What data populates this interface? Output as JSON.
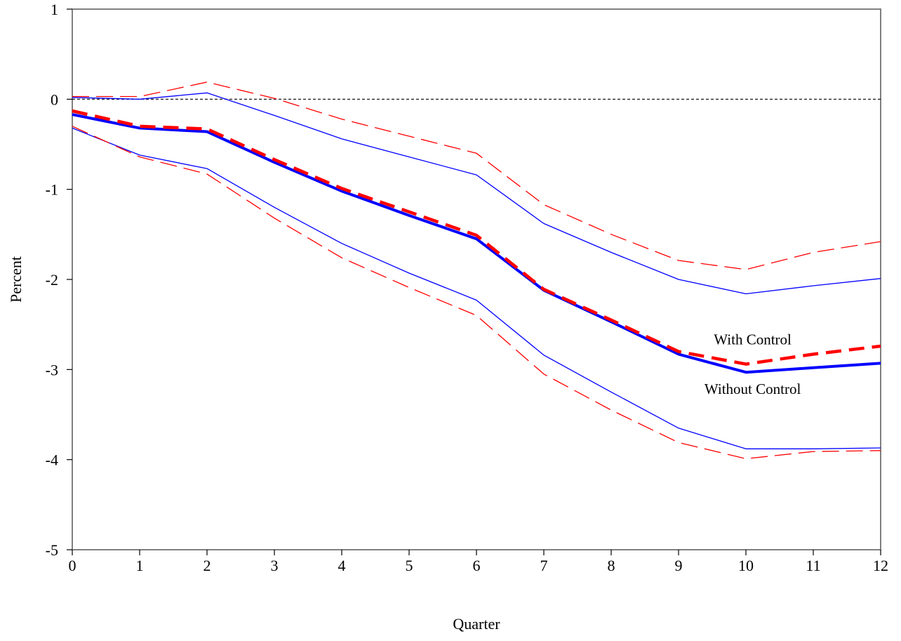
{
  "chart_data": {
    "type": "line",
    "title": "",
    "xlabel": "Quarter",
    "ylabel": "Percent",
    "xlim": [
      0,
      12
    ],
    "ylim": [
      -5,
      1
    ],
    "x": [
      0,
      1,
      2,
      3,
      4,
      5,
      6,
      7,
      8,
      9,
      10,
      11,
      12
    ],
    "xticks": [
      "0",
      "1",
      "2",
      "3",
      "4",
      "5",
      "6",
      "7",
      "8",
      "9",
      "10",
      "11",
      "12"
    ],
    "yticks": [
      "1",
      "0",
      "-1",
      "-2",
      "-3",
      "-4",
      "-5"
    ],
    "grid": false,
    "reference_line": {
      "y": 0,
      "style": "dotted",
      "color": "#000000"
    },
    "series": [
      {
        "name": "Without Control",
        "role": "point-estimate",
        "color": "#0000ff",
        "style": "solid-thick",
        "values": [
          -0.17,
          -0.32,
          -0.36,
          -0.7,
          -1.02,
          -1.29,
          -1.55,
          -2.12,
          -2.47,
          -2.83,
          -3.03,
          -2.98,
          -2.93
        ]
      },
      {
        "role": "band-upper",
        "color": "#0000ff",
        "style": "solid-thin",
        "values": [
          0.02,
          0.0,
          0.07,
          -0.18,
          -0.44,
          -0.64,
          -0.84,
          -1.38,
          -1.7,
          -2.0,
          -2.16,
          -2.07,
          -1.99
        ]
      },
      {
        "role": "band-lower",
        "color": "#0000ff",
        "style": "solid-thin",
        "values": [
          -0.32,
          -0.62,
          -0.77,
          -1.2,
          -1.6,
          -1.93,
          -2.23,
          -2.84,
          -3.25,
          -3.65,
          -3.88,
          -3.88,
          -3.87
        ]
      },
      {
        "name": "With Control",
        "role": "point-estimate",
        "color": "#ff0000",
        "style": "dashed-thick",
        "values": [
          -0.13,
          -0.3,
          -0.33,
          -0.67,
          -0.99,
          -1.25,
          -1.51,
          -2.11,
          -2.45,
          -2.8,
          -2.94,
          -2.83,
          -2.74
        ]
      },
      {
        "role": "band-upper",
        "color": "#ff0000",
        "style": "dashed-thin",
        "values": [
          0.03,
          0.03,
          0.19,
          0.01,
          -0.22,
          -0.41,
          -0.6,
          -1.17,
          -1.5,
          -1.79,
          -1.89,
          -1.7,
          -1.58
        ]
      },
      {
        "role": "band-lower",
        "color": "#ff0000",
        "style": "dashed-thin",
        "values": [
          -0.3,
          -0.64,
          -0.83,
          -1.32,
          -1.76,
          -2.09,
          -2.4,
          -3.05,
          -3.45,
          -3.81,
          -3.99,
          -3.91,
          -3.9
        ]
      }
    ],
    "annotations": [
      {
        "text": "With Control",
        "x": 10.1,
        "y": -2.72
      },
      {
        "text": "Without Control",
        "x": 10.1,
        "y": -3.27
      }
    ]
  }
}
